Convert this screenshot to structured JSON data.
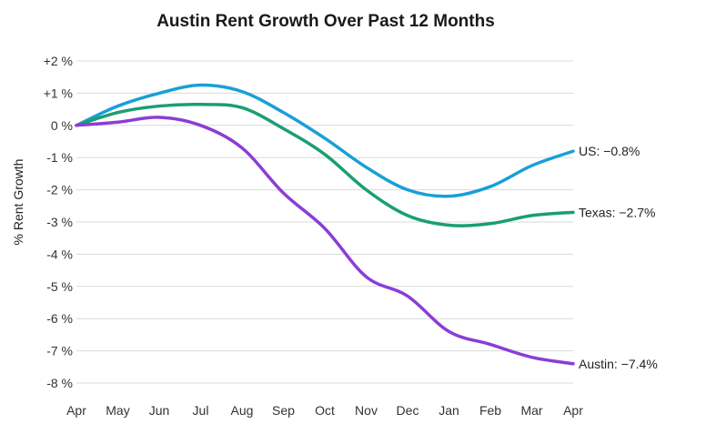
{
  "chart_data": {
    "type": "line",
    "title": "Austin Rent Growth Over Past 12 Months",
    "xlabel": "",
    "ylabel": "% Rent Growth",
    "categories": [
      "Apr",
      "May",
      "Jun",
      "Jul",
      "Aug",
      "Sep",
      "Oct",
      "Nov",
      "Dec",
      "Jan",
      "Feb",
      "Mar",
      "Apr"
    ],
    "ylim": [
      -8,
      2
    ],
    "yticks": [
      2,
      1,
      0,
      -1,
      -2,
      -3,
      -4,
      -5,
      -6,
      -7,
      -8
    ],
    "ytick_labels": [
      "+2 %",
      "+1 %",
      "0 %",
      "-1 %",
      "-2 %",
      "-3 %",
      "-4 %",
      "-5 %",
      "-6 %",
      "-7 %",
      "-8 %"
    ],
    "grid": true,
    "series": [
      {
        "name": "US",
        "end_label": "US: −0.8%",
        "color": "#1a9fd6",
        "values": [
          0.0,
          0.6,
          1.0,
          1.25,
          1.05,
          0.4,
          -0.4,
          -1.3,
          -2.0,
          -2.2,
          -1.9,
          -1.25,
          -0.8
        ]
      },
      {
        "name": "Texas",
        "end_label": "Texas: −2.7%",
        "color": "#1a9e72",
        "values": [
          0.0,
          0.4,
          0.6,
          0.65,
          0.55,
          -0.1,
          -0.9,
          -2.0,
          -2.8,
          -3.1,
          -3.05,
          -2.8,
          -2.7
        ]
      },
      {
        "name": "Austin",
        "end_label": "Austin: −7.4%",
        "color": "#8b3dd6",
        "values": [
          0.0,
          0.1,
          0.25,
          0.0,
          -0.7,
          -2.1,
          -3.2,
          -4.7,
          -5.3,
          -6.4,
          -6.8,
          -7.2,
          -7.4
        ]
      }
    ]
  }
}
